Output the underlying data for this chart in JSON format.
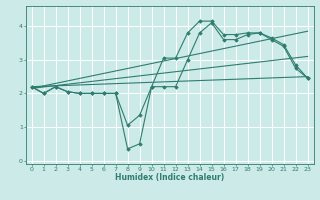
{
  "background_color": "#cceae8",
  "grid_color": "#ffffff",
  "line_color": "#2e7d6e",
  "xlabel": "Humidex (Indice chaleur)",
  "xlim": [
    -0.5,
    23.5
  ],
  "ylim": [
    -0.1,
    4.6
  ],
  "yticks": [
    0,
    1,
    2,
    3,
    4
  ],
  "xticks": [
    0,
    1,
    2,
    3,
    4,
    5,
    6,
    7,
    8,
    9,
    10,
    11,
    12,
    13,
    14,
    15,
    16,
    17,
    18,
    19,
    20,
    21,
    22,
    23
  ],
  "series_main1_x": [
    0,
    1,
    2,
    3,
    4,
    5,
    6,
    7,
    8,
    9,
    10,
    11,
    12,
    13,
    14,
    15,
    16,
    17,
    18,
    19,
    20,
    21,
    22,
    23
  ],
  "series_main1_y": [
    2.2,
    2.0,
    2.2,
    2.05,
    2.0,
    2.0,
    2.0,
    2.0,
    1.05,
    1.35,
    2.2,
    3.05,
    3.05,
    3.8,
    4.15,
    4.15,
    3.75,
    3.75,
    3.8,
    3.8,
    3.65,
    3.45,
    2.85,
    2.45
  ],
  "series_main2_x": [
    0,
    1,
    2,
    3,
    4,
    5,
    6,
    7,
    8,
    9,
    10,
    11,
    12,
    13,
    14,
    15,
    16,
    17,
    18,
    19,
    20,
    21,
    22,
    23
  ],
  "series_main2_y": [
    2.2,
    2.0,
    2.2,
    2.05,
    2.0,
    2.0,
    2.0,
    2.0,
    0.35,
    0.5,
    2.2,
    2.2,
    2.2,
    3.0,
    3.8,
    4.1,
    3.6,
    3.6,
    3.75,
    3.8,
    3.6,
    3.4,
    2.75,
    2.45
  ],
  "series_line1_x": [
    0,
    23
  ],
  "series_line1_y": [
    2.2,
    2.5
  ],
  "series_line2_x": [
    0,
    23
  ],
  "series_line2_y": [
    2.15,
    3.85
  ],
  "series_line3_x": [
    0,
    23
  ],
  "series_line3_y": [
    2.15,
    3.1
  ]
}
